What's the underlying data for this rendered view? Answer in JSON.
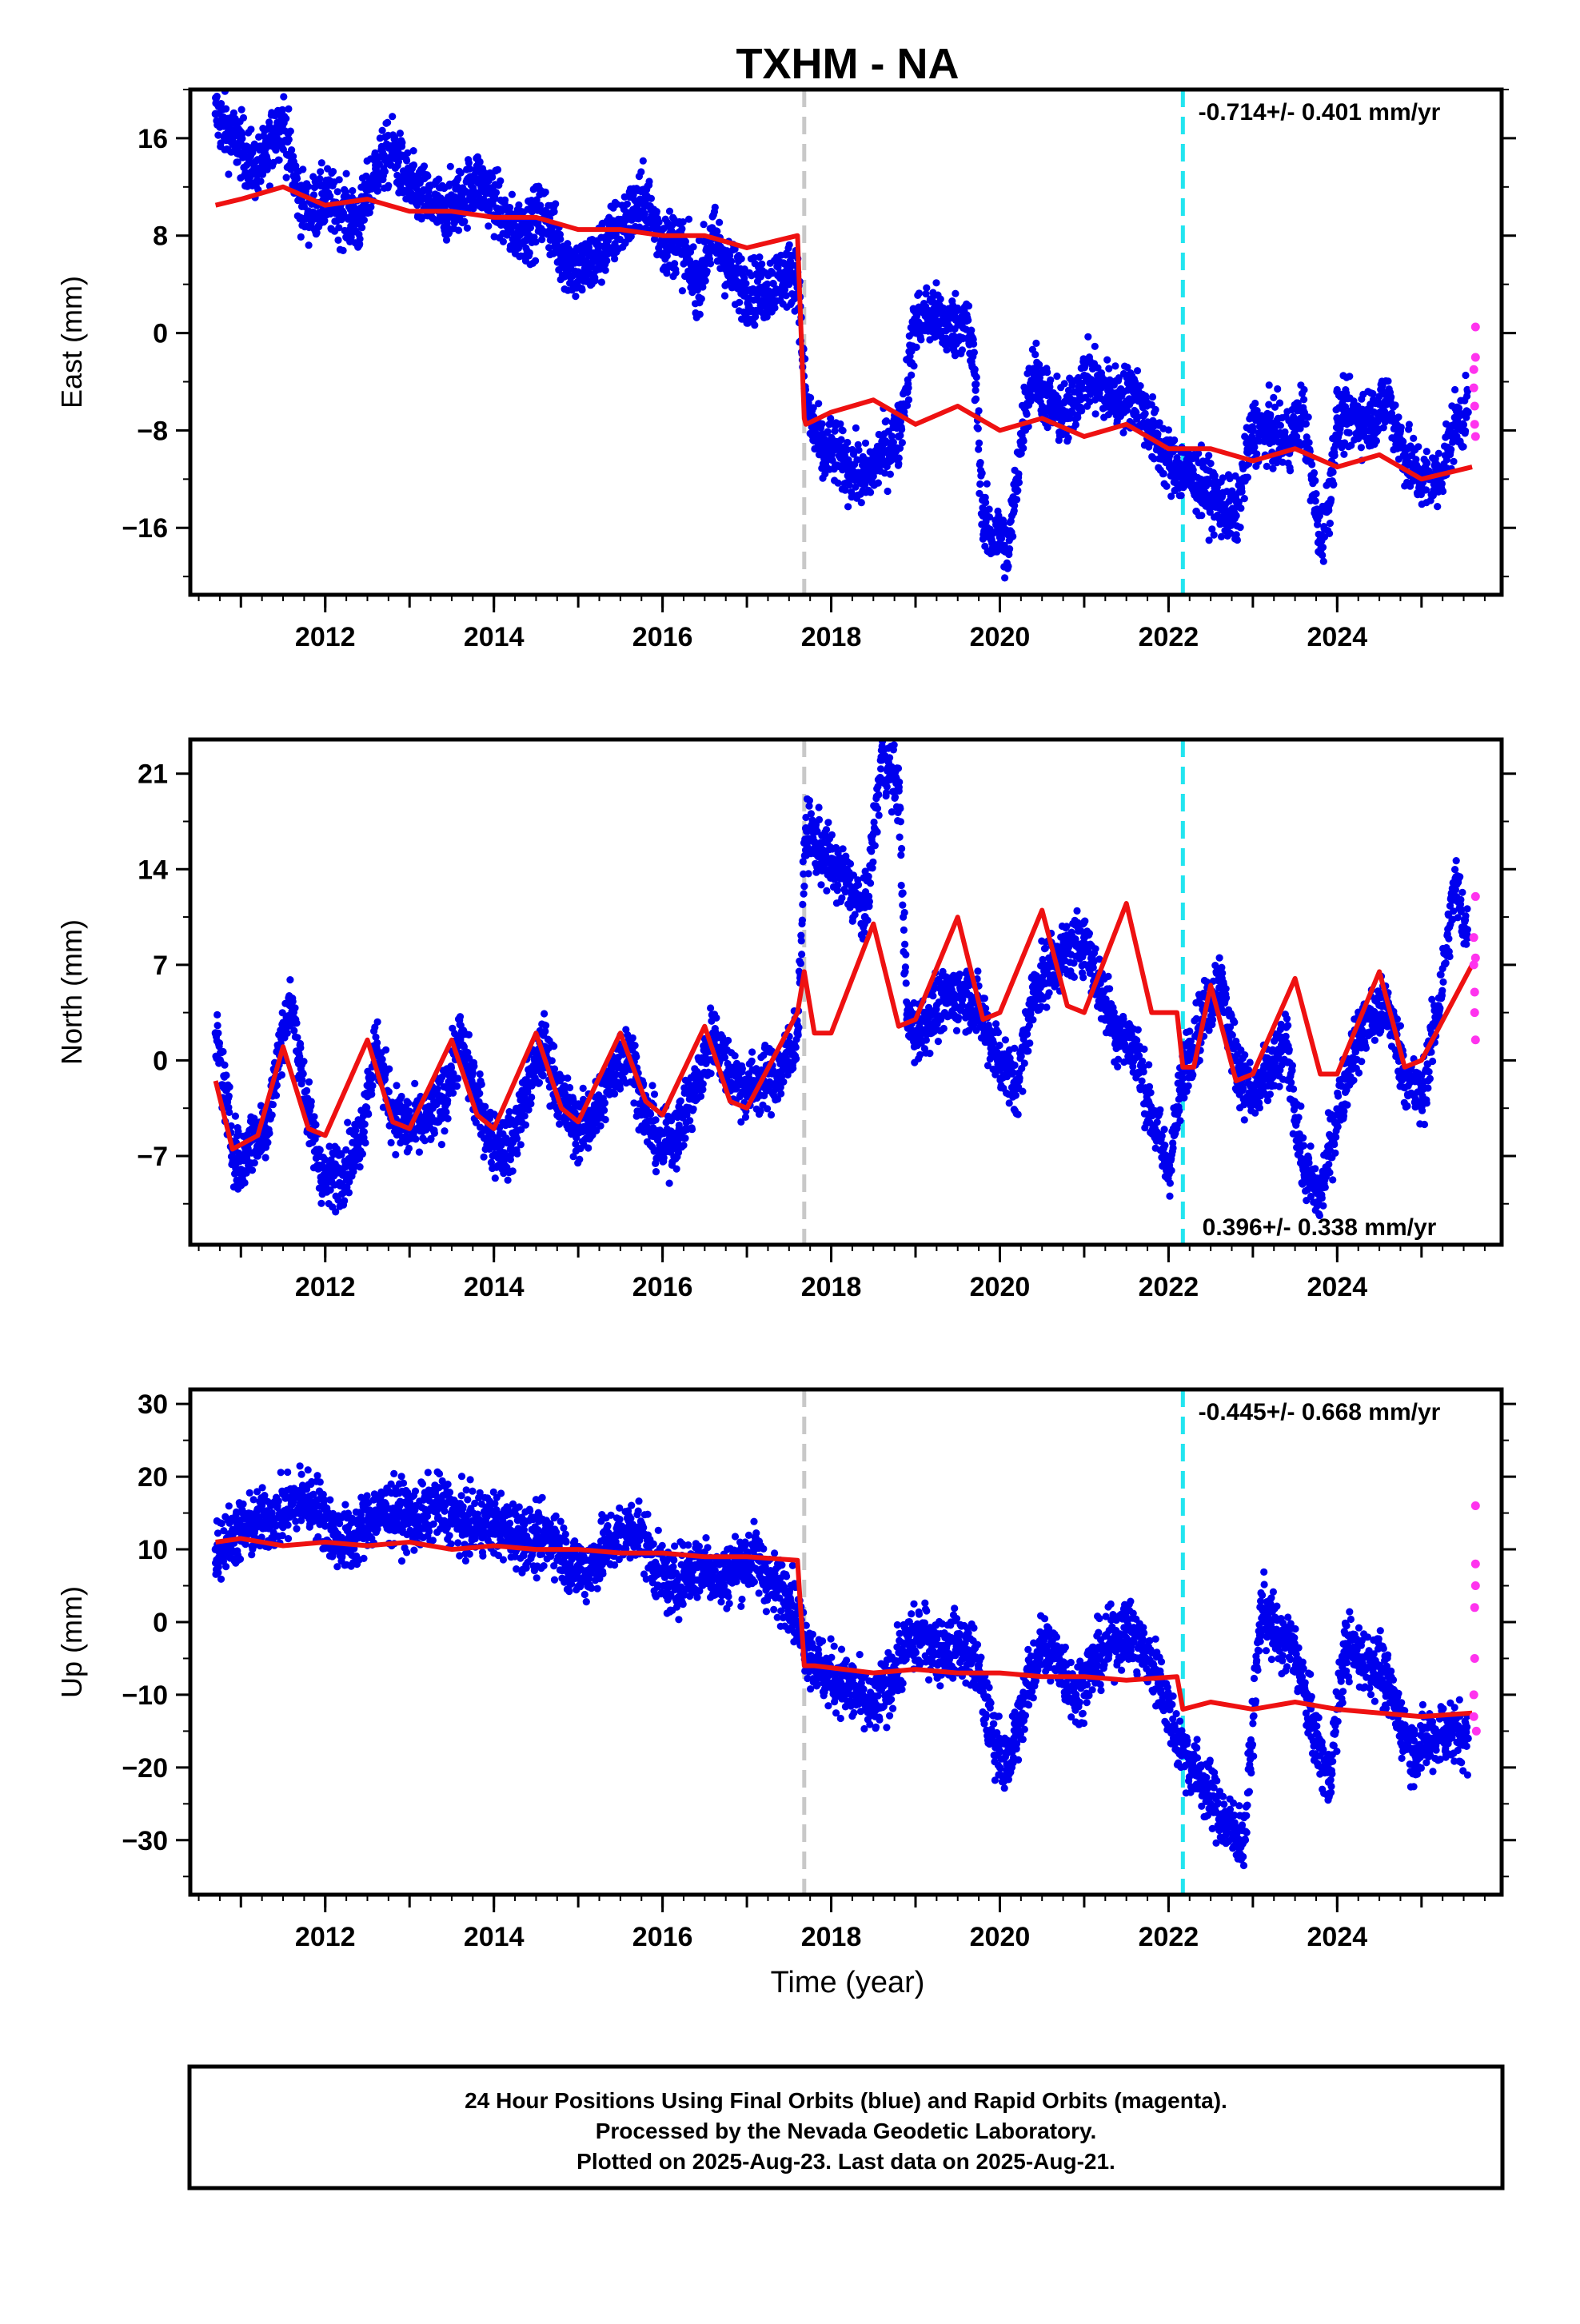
{
  "title": "TXHM - NA",
  "xlabel": "Time (year)",
  "colors": {
    "final": "#0000ee",
    "rapid": "#ff33ee",
    "model": "#ee1111",
    "equip_change": "#c8c8c8",
    "eq_event": "#22e5f0"
  },
  "footer": {
    "line1": "24 Hour Positions Using Final Orbits (blue) and Rapid Orbits (magenta).",
    "line2": "Processed by the Nevada Geodetic Laboratory.",
    "line3": "Plotted on 2025-Aug-23. Last data on 2025-Aug-21."
  },
  "chart_data": [
    {
      "type": "scatter",
      "component": "East",
      "ylabel": "East (mm)",
      "rate_label": "-0.714+/- 0.401 mm/yr",
      "rate_position": "top-right",
      "xlim": [
        2010.4,
        2025.95
      ],
      "ylim": [
        -21.5,
        20
      ],
      "yticks": [
        16,
        8,
        0,
        -8,
        -16
      ],
      "ytick_labels": [
        "16",
        "8",
        "0",
        "−8",
        "−16"
      ],
      "xticks": [
        2012,
        2014,
        2016,
        2018,
        2020,
        2022,
        2024
      ],
      "xtick_labels": [
        "2012",
        "2014",
        "2016",
        "2018",
        "2020",
        "2022",
        "2024"
      ],
      "grid": false,
      "vertical_lines": [
        {
          "x": 2017.68,
          "kind": "equipment_change",
          "style": "dashed",
          "color": "#c8c8c8"
        },
        {
          "x": 2022.17,
          "kind": "earthquake",
          "style": "dashed",
          "color": "#22e5f0"
        }
      ],
      "observed_series": {
        "name": "Final Orbits",
        "x": [
          2010.7,
          2010.8,
          2010.9,
          2011.0,
          2011.1,
          2011.2,
          2011.3,
          2011.4,
          2011.5,
          2011.6,
          2011.7,
          2011.8,
          2011.9,
          2012.0,
          2012.2,
          2012.4,
          2012.6,
          2012.8,
          2013.0,
          2013.2,
          2013.4,
          2013.6,
          2013.8,
          2014.0,
          2014.2,
          2014.4,
          2014.6,
          2014.8,
          2015.0,
          2015.2,
          2015.4,
          2015.6,
          2015.8,
          2016.0,
          2016.2,
          2016.4,
          2016.6,
          2016.8,
          2017.0,
          2017.2,
          2017.4,
          2017.6,
          2017.7,
          2017.8,
          2017.9,
          2018.0,
          2018.2,
          2018.4,
          2018.6,
          2018.8,
          2019.0,
          2019.2,
          2019.4,
          2019.6,
          2019.7,
          2019.8,
          2019.9,
          2020.0,
          2020.1,
          2020.2,
          2020.3,
          2020.4,
          2020.6,
          2020.8,
          2021.0,
          2021.2,
          2021.4,
          2021.6,
          2021.8,
          2022.0,
          2022.2,
          2022.4,
          2022.6,
          2022.8,
          2023.0,
          2023.2,
          2023.4,
          2023.6,
          2023.7,
          2023.8,
          2023.9,
          2024.0,
          2024.2,
          2024.4,
          2024.6,
          2024.8,
          2025.0,
          2025.2,
          2025.4,
          2025.55
        ],
        "y": [
          18.0,
          17.0,
          16.0,
          15.5,
          14.0,
          13.5,
          14.5,
          16.5,
          17.5,
          14.0,
          11.0,
          10.0,
          10.5,
          11.0,
          10.0,
          9.0,
          13.5,
          15.0,
          12.0,
          11.0,
          10.0,
          11.0,
          12.5,
          11.0,
          8.5,
          8.5,
          10.0,
          6.5,
          5.0,
          6.0,
          8.0,
          9.5,
          11.0,
          7.5,
          7.5,
          4.0,
          8.0,
          5.0,
          3.5,
          3.5,
          4.5,
          5.0,
          -6.0,
          -8.0,
          -10.0,
          -9.5,
          -11.0,
          -12.0,
          -10.0,
          -8.5,
          1.0,
          1.5,
          0.5,
          1.0,
          -3.0,
          -15.0,
          -17.0,
          -16.5,
          -18.0,
          -12.0,
          -6.0,
          -3.0,
          -6.0,
          -7.0,
          -3.5,
          -4.5,
          -5.5,
          -5.0,
          -8.0,
          -10.5,
          -11.5,
          -12.5,
          -14.0,
          -15.0,
          -8.0,
          -8.0,
          -9.0,
          -6.5,
          -12.0,
          -17.0,
          -14.0,
          -7.0,
          -7.0,
          -7.0,
          -5.5,
          -10.0,
          -12.0,
          -12.0,
          -7.5,
          -6.5
        ]
      },
      "rapid_series": {
        "name": "Rapid Orbits",
        "x": [
          2025.62,
          2025.62,
          2025.63,
          2025.63,
          2025.64,
          2025.64,
          2025.64
        ],
        "y": [
          -3.0,
          -4.5,
          -6.0,
          -7.5,
          -2.0,
          0.5,
          -8.5
        ]
      },
      "model_series": {
        "name": "Model",
        "offset_epochs": [
          2017.68
        ],
        "x": [
          2010.7,
          2011.0,
          2011.5,
          2012.0,
          2012.5,
          2013.0,
          2013.5,
          2014.0,
          2014.5,
          2015.0,
          2015.5,
          2016.0,
          2016.5,
          2017.0,
          2017.6,
          2017.68,
          2017.7,
          2018.0,
          2018.5,
          2019.0,
          2019.5,
          2020.0,
          2020.5,
          2021.0,
          2021.5,
          2022.0,
          2022.5,
          2023.0,
          2023.5,
          2024.0,
          2024.5,
          2025.0,
          2025.6
        ],
        "y": [
          10.5,
          11.0,
          12.0,
          10.5,
          11.0,
          10.0,
          10.0,
          9.5,
          9.5,
          8.5,
          8.5,
          8.0,
          8.0,
          7.0,
          8.0,
          -7.0,
          -7.5,
          -6.5,
          -5.5,
          -7.5,
          -6.0,
          -8.0,
          -7.0,
          -8.5,
          -7.5,
          -9.5,
          -9.5,
          -10.5,
          -9.5,
          -11.0,
          -10.0,
          -12.0,
          -11.0
        ]
      }
    },
    {
      "type": "scatter",
      "component": "North",
      "ylabel": "North (mm)",
      "rate_label": "0.396+/- 0.338 mm/yr",
      "rate_position": "bottom-right",
      "xlim": [
        2010.4,
        2025.95
      ],
      "ylim": [
        -13.5,
        23.5
      ],
      "yticks": [
        21,
        14,
        7,
        0,
        -7
      ],
      "ytick_labels": [
        "21",
        "14",
        "7",
        "0",
        "−7"
      ],
      "xticks": [
        2012,
        2014,
        2016,
        2018,
        2020,
        2022,
        2024
      ],
      "xtick_labels": [
        "2012",
        "2014",
        "2016",
        "2018",
        "2020",
        "2022",
        "2024"
      ],
      "grid": false,
      "vertical_lines": [
        {
          "x": 2017.68,
          "kind": "equipment_change",
          "style": "dashed",
          "color": "#c8c8c8"
        },
        {
          "x": 2022.17,
          "kind": "earthquake",
          "style": "dashed",
          "color": "#22e5f0"
        }
      ],
      "observed_series": {
        "name": "Final Orbits",
        "x": [
          2010.7,
          2010.8,
          2010.9,
          2011.0,
          2011.1,
          2011.3,
          2011.5,
          2011.6,
          2011.8,
          2012.0,
          2012.2,
          2012.4,
          2012.6,
          2012.8,
          2013.0,
          2013.2,
          2013.4,
          2013.6,
          2013.8,
          2014.0,
          2014.2,
          2014.4,
          2014.6,
          2014.8,
          2015.0,
          2015.2,
          2015.4,
          2015.6,
          2015.8,
          2016.0,
          2016.2,
          2016.4,
          2016.6,
          2016.8,
          2017.0,
          2017.2,
          2017.4,
          2017.6,
          2017.7,
          2017.8,
          2018.0,
          2018.2,
          2018.4,
          2018.6,
          2018.8,
          2018.9,
          2019.0,
          2019.2,
          2019.4,
          2019.6,
          2019.8,
          2020.0,
          2020.2,
          2020.4,
          2020.6,
          2020.8,
          2021.0,
          2021.2,
          2021.4,
          2021.6,
          2021.8,
          2022.0,
          2022.2,
          2022.4,
          2022.6,
          2022.8,
          2023.0,
          2023.2,
          2023.4,
          2023.6,
          2023.8,
          2024.0,
          2024.2,
          2024.4,
          2024.6,
          2024.8,
          2025.0,
          2025.2,
          2025.4,
          2025.55
        ],
        "y": [
          2.0,
          -2.0,
          -6.0,
          -8.0,
          -6.0,
          -5.0,
          2.0,
          4.0,
          -4.0,
          -9.0,
          -8.0,
          -6.0,
          1.0,
          -4.0,
          -5.0,
          -4.5,
          -3.0,
          1.5,
          -3.0,
          -6.0,
          -6.5,
          -2.0,
          1.0,
          -3.0,
          -5.0,
          -4.0,
          -1.0,
          1.0,
          -4.0,
          -6.5,
          -5.0,
          -2.0,
          2.0,
          -1.0,
          -2.0,
          -1.5,
          -1.0,
          2.0,
          17.0,
          16.0,
          14.5,
          13.0,
          10.5,
          22.0,
          20.0,
          3.0,
          2.0,
          3.5,
          4.5,
          5.0,
          3.0,
          0.0,
          -2.0,
          5.0,
          7.0,
          8.0,
          9.0,
          5.0,
          2.0,
          1.0,
          -4.0,
          -8.0,
          0.0,
          3.0,
          6.0,
          0.0,
          -3.0,
          -1.0,
          1.0,
          -8.0,
          -10.0,
          -4.0,
          1.0,
          3.0,
          4.0,
          -1.0,
          -3.0,
          4.0,
          13.0,
          9.0
        ]
      },
      "rapid_series": {
        "name": "Rapid Orbits",
        "x": [
          2025.62,
          2025.62,
          2025.63,
          2025.63,
          2025.64,
          2025.64,
          2025.64
        ],
        "y": [
          9.0,
          7.0,
          5.0,
          3.5,
          12.0,
          1.5,
          7.5
        ]
      },
      "model_series": {
        "name": "Model",
        "offset_epochs": [
          2017.68,
          2022.17
        ],
        "x": [
          2010.7,
          2010.9,
          2011.2,
          2011.5,
          2011.8,
          2012.0,
          2012.5,
          2012.8,
          2013.0,
          2013.5,
          2013.8,
          2014.0,
          2014.5,
          2014.8,
          2015.0,
          2015.5,
          2015.8,
          2016.0,
          2016.5,
          2016.8,
          2017.0,
          2017.6,
          2017.68,
          2017.8,
          2018.0,
          2018.5,
          2018.8,
          2019.0,
          2019.5,
          2019.8,
          2020.0,
          2020.5,
          2020.8,
          2021.0,
          2021.5,
          2021.8,
          2022.1,
          2022.17,
          2022.3,
          2022.5,
          2022.8,
          2023.0,
          2023.5,
          2023.8,
          2024.0,
          2024.5,
          2024.8,
          2025.0,
          2025.6
        ],
        "y": [
          -1.5,
          -6.5,
          -5.5,
          1.0,
          -5.0,
          -5.5,
          1.5,
          -4.5,
          -5.0,
          1.5,
          -4.0,
          -5.0,
          2.0,
          -3.5,
          -4.5,
          2.0,
          -3.0,
          -4.0,
          2.5,
          -3.0,
          -3.5,
          3.5,
          6.5,
          2.0,
          2.0,
          10.0,
          2.5,
          3.0,
          10.5,
          3.0,
          3.5,
          11.0,
          4.0,
          3.5,
          11.5,
          3.5,
          3.5,
          -0.5,
          -0.5,
          5.5,
          -1.5,
          -1.0,
          6.0,
          -1.0,
          -1.0,
          6.5,
          -0.5,
          0.0,
          7.0
        ]
      }
    },
    {
      "type": "scatter",
      "component": "Up",
      "ylabel": "Up (mm)",
      "rate_label": "-0.445+/- 0.668 mm/yr",
      "rate_position": "top-right",
      "xlim": [
        2010.4,
        2025.95
      ],
      "ylim": [
        -37.5,
        32
      ],
      "yticks": [
        30,
        20,
        10,
        0,
        -10,
        -20,
        -30
      ],
      "ytick_labels": [
        "30",
        "20",
        "10",
        "0",
        "−10",
        "−20",
        "−30"
      ],
      "xticks": [
        2012,
        2014,
        2016,
        2018,
        2020,
        2022,
        2024
      ],
      "xtick_labels": [
        "2012",
        "2014",
        "2016",
        "2018",
        "2020",
        "2022",
        "2024"
      ],
      "xlabel": "Time (year)",
      "grid": false,
      "vertical_lines": [
        {
          "x": 2017.68,
          "kind": "equipment_change",
          "style": "dashed",
          "color": "#c8c8c8"
        },
        {
          "x": 2022.17,
          "kind": "earthquake",
          "style": "dashed",
          "color": "#22e5f0"
        }
      ],
      "observed_series": {
        "name": "Final Orbits",
        "x": [
          2010.7,
          2010.9,
          2011.1,
          2011.3,
          2011.5,
          2011.7,
          2011.9,
          2012.1,
          2012.3,
          2012.5,
          2012.7,
          2012.9,
          2013.1,
          2013.3,
          2013.5,
          2013.7,
          2013.9,
          2014.1,
          2014.3,
          2014.5,
          2014.7,
          2014.9,
          2015.1,
          2015.3,
          2015.5,
          2015.7,
          2015.9,
          2016.1,
          2016.3,
          2016.5,
          2016.7,
          2016.9,
          2017.1,
          2017.3,
          2017.5,
          2017.7,
          2017.9,
          2018.1,
          2018.3,
          2018.5,
          2018.7,
          2018.9,
          2019.1,
          2019.3,
          2019.5,
          2019.7,
          2019.9,
          2020.1,
          2020.3,
          2020.5,
          2020.7,
          2020.9,
          2021.1,
          2021.3,
          2021.5,
          2021.7,
          2021.9,
          2022.1,
          2022.3,
          2022.5,
          2022.7,
          2022.9,
          2023.1,
          2023.3,
          2023.5,
          2023.7,
          2023.9,
          2024.1,
          2024.3,
          2024.5,
          2024.7,
          2024.9,
          2025.1,
          2025.3,
          2025.55
        ],
        "y": [
          10,
          12,
          13,
          14,
          15,
          17,
          16,
          12,
          11,
          14,
          15,
          15,
          14,
          16,
          15,
          13,
          14,
          13,
          12,
          11,
          12,
          8,
          7,
          10,
          12,
          13,
          8,
          5,
          7,
          8,
          6,
          8,
          9,
          5,
          4,
          -3,
          -7,
          -8,
          -10,
          -12,
          -8,
          -3,
          -2,
          -4,
          -3,
          -5,
          -15,
          -20,
          -10,
          -3,
          -5,
          -10,
          -6,
          -3,
          -1,
          -4,
          -8,
          -16,
          -20,
          -24,
          -28,
          -30,
          2,
          -2,
          -4,
          -14,
          -22,
          -3,
          -5,
          -6,
          -12,
          -18,
          -16,
          -15,
          -16
        ]
      },
      "rapid_series": {
        "name": "Rapid Orbits",
        "x": [
          2025.62,
          2025.62,
          2025.63,
          2025.63,
          2025.64,
          2025.64,
          2025.64,
          2025.65
        ],
        "y": [
          -13,
          -10,
          -5,
          2,
          5,
          8,
          16,
          -15
        ]
      },
      "model_series": {
        "name": "Model",
        "offset_epochs": [
          2017.68,
          2022.17
        ],
        "x": [
          2010.7,
          2011.0,
          2011.5,
          2012.0,
          2012.5,
          2013.0,
          2013.5,
          2014.0,
          2014.5,
          2015.0,
          2015.5,
          2016.0,
          2016.5,
          2017.0,
          2017.6,
          2017.68,
          2017.8,
          2018.5,
          2019.0,
          2019.5,
          2020.0,
          2020.5,
          2021.0,
          2021.5,
          2022.1,
          2022.17,
          2022.5,
          2023.0,
          2023.5,
          2024.0,
          2024.5,
          2025.0,
          2025.6
        ],
        "y": [
          11,
          11.5,
          10.5,
          11,
          10.5,
          11,
          10,
          10.5,
          10,
          10,
          9.5,
          9.5,
          9,
          9,
          8.5,
          -6,
          -6,
          -7,
          -6.5,
          -7,
          -7,
          -7.5,
          -7.5,
          -8,
          -7.5,
          -12,
          -11,
          -12,
          -11,
          -12,
          -12.5,
          -13,
          -12.5
        ]
      }
    }
  ]
}
